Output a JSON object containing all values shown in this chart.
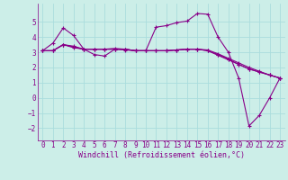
{
  "xlabel": "Windchill (Refroidissement éolien,°C)",
  "background_color": "#cceee8",
  "grid_color": "#aadddd",
  "line_color": "#880088",
  "xlim": [
    -0.5,
    23.5
  ],
  "ylim": [
    -2.8,
    6.2
  ],
  "xticks": [
    0,
    1,
    2,
    3,
    4,
    5,
    6,
    7,
    8,
    9,
    10,
    11,
    12,
    13,
    14,
    15,
    16,
    17,
    18,
    19,
    20,
    21,
    22,
    23
  ],
  "yticks": [
    -2,
    -1,
    0,
    1,
    2,
    3,
    4,
    5
  ],
  "series": [
    [
      3.1,
      3.6,
      4.6,
      4.1,
      3.2,
      2.85,
      2.75,
      3.2,
      3.2,
      3.1,
      3.1,
      4.65,
      4.75,
      4.95,
      5.05,
      5.55,
      5.5,
      4.0,
      3.0,
      1.3,
      -1.85,
      -1.15,
      0.0,
      1.3
    ],
    [
      3.1,
      3.1,
      3.5,
      3.3,
      3.2,
      3.2,
      3.2,
      3.2,
      3.15,
      3.1,
      3.1,
      3.1,
      3.1,
      3.15,
      3.2,
      3.2,
      3.1,
      2.8,
      2.5,
      2.2,
      1.9,
      1.7,
      1.5,
      1.3
    ],
    [
      3.1,
      3.1,
      3.5,
      3.35,
      3.2,
      3.2,
      3.2,
      3.2,
      3.2,
      3.1,
      3.1,
      3.1,
      3.1,
      3.15,
      3.2,
      3.2,
      3.1,
      2.85,
      2.55,
      2.2,
      1.9,
      1.7,
      1.5,
      1.3
    ],
    [
      3.1,
      3.1,
      3.5,
      3.4,
      3.2,
      3.2,
      3.2,
      3.25,
      3.2,
      3.1,
      3.1,
      3.1,
      3.1,
      3.15,
      3.2,
      3.2,
      3.15,
      2.9,
      2.6,
      2.3,
      2.0,
      1.75,
      1.5,
      1.3
    ]
  ],
  "tick_color": "#880088",
  "xlabel_fontsize": 6.0,
  "tick_fontsize": 5.5
}
